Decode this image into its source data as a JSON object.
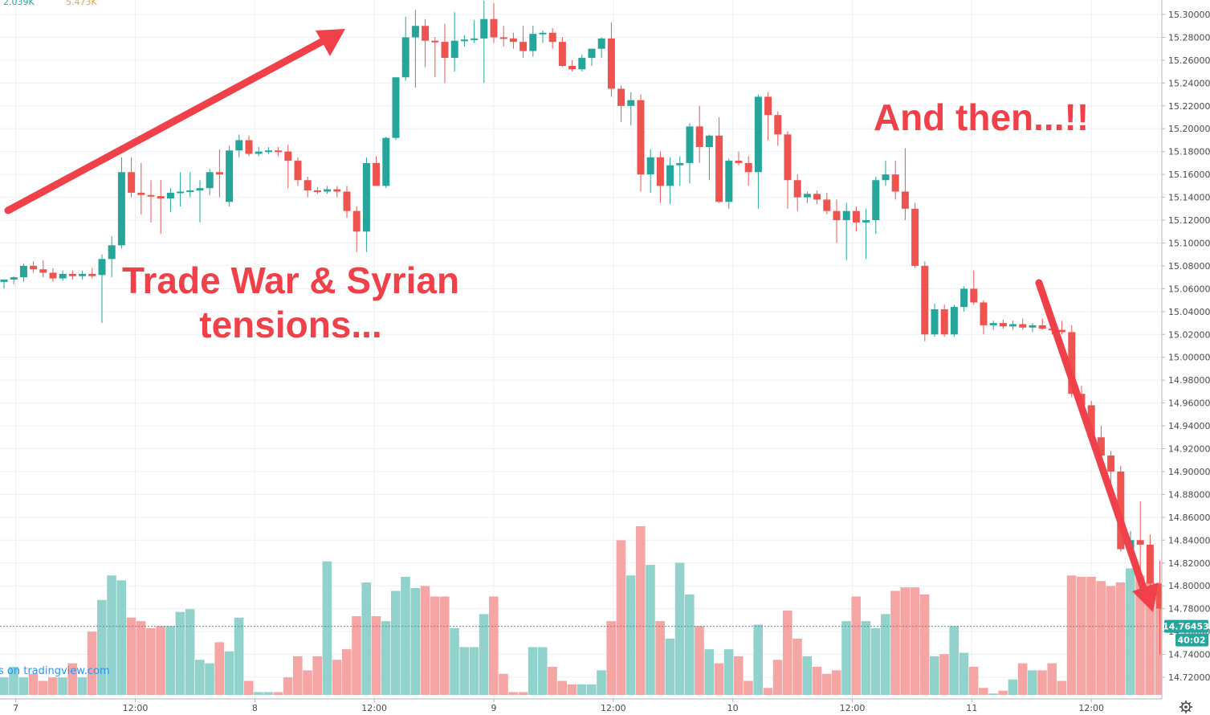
{
  "header": {
    "volume_up": "2.039K",
    "volume_down": "5.473K"
  },
  "annotations": {
    "left_line1": "Trade War & Syrian",
    "left_line2": "tensions...",
    "right": "And then...!!"
  },
  "credit": "s on tradingview.com",
  "price_badge": "14.76453",
  "countdown_badge": "40:02",
  "settings_icon": "gear-icon",
  "colors": {
    "up": "#26a69a",
    "down": "#ef5350",
    "up_volume": "#92d2cc",
    "down_volume": "#f5a6a4",
    "annotation": "#f0414b",
    "grid": "#eceff2"
  },
  "chart_data": {
    "type": "candlestick",
    "y_axis_side": "right",
    "ylim": [
      14.71,
      15.315
    ],
    "y_ticks": [
      "15.30000",
      "15.28000",
      "15.26000",
      "15.24000",
      "15.22000",
      "15.20000",
      "15.18000",
      "15.16000",
      "15.14000",
      "15.12000",
      "15.10000",
      "15.08000",
      "15.06000",
      "15.04000",
      "15.02000",
      "15.00000",
      "14.98000",
      "14.96000",
      "14.94000",
      "14.92000",
      "14.90000",
      "14.88000",
      "14.86000",
      "14.84000",
      "14.82000",
      "14.80000",
      "14.78000",
      "14.76000",
      "14.74000",
      "14.72000"
    ],
    "x_ticks": [
      {
        "label": "7",
        "i": 1.2
      },
      {
        "label": "12:00",
        "i": 13.4
      },
      {
        "label": "8",
        "i": 25.6
      },
      {
        "label": "12:00",
        "i": 37.8
      },
      {
        "label": "9",
        "i": 50.0
      },
      {
        "label": "12:00",
        "i": 62.2
      },
      {
        "label": "10",
        "i": 74.4
      },
      {
        "label": "12:00",
        "i": 86.6
      },
      {
        "label": "11",
        "i": 98.8
      },
      {
        "label": "12:00",
        "i": 111.0
      }
    ],
    "last_price": 14.76453,
    "grid": true,
    "candles": [
      {
        "o": 15.066,
        "h": 15.068,
        "l": 15.06,
        "c": 15.068,
        "v": 0.25
      },
      {
        "o": 15.068,
        "h": 15.071,
        "l": 15.064,
        "c": 15.07,
        "v": 0.4
      },
      {
        "o": 15.07,
        "h": 15.082,
        "l": 15.066,
        "c": 15.08,
        "v": 0.25
      },
      {
        "o": 15.08,
        "h": 15.084,
        "l": 15.074,
        "c": 15.077,
        "v": 0.3
      },
      {
        "o": 15.077,
        "h": 15.085,
        "l": 15.07,
        "c": 15.074,
        "v": 0.2
      },
      {
        "o": 15.074,
        "h": 15.078,
        "l": 15.066,
        "c": 15.069,
        "v": 0.25
      },
      {
        "o": 15.069,
        "h": 15.076,
        "l": 15.067,
        "c": 15.073,
        "v": 0.25
      },
      {
        "o": 15.073,
        "h": 15.076,
        "l": 15.068,
        "c": 15.071,
        "v": 0.45
      },
      {
        "o": 15.071,
        "h": 15.076,
        "l": 15.068,
        "c": 15.073,
        "v": 0.25
      },
      {
        "o": 15.073,
        "h": 15.078,
        "l": 15.069,
        "c": 15.071,
        "v": 0.9
      },
      {
        "o": 15.072,
        "h": 15.09,
        "l": 15.03,
        "c": 15.086,
        "v": 1.35
      },
      {
        "o": 15.086,
        "h": 15.106,
        "l": 15.07,
        "c": 15.098,
        "v": 1.7
      },
      {
        "o": 15.098,
        "h": 15.175,
        "l": 15.095,
        "c": 15.162,
        "v": 1.63
      },
      {
        "o": 15.162,
        "h": 15.175,
        "l": 15.14,
        "c": 15.144,
        "v": 1.1
      },
      {
        "o": 15.144,
        "h": 15.17,
        "l": 15.125,
        "c": 15.142,
        "v": 1.05
      },
      {
        "o": 15.142,
        "h": 15.155,
        "l": 15.118,
        "c": 15.141,
        "v": 0.95
      },
      {
        "o": 15.141,
        "h": 15.155,
        "l": 15.108,
        "c": 15.139,
        "v": 0.98
      },
      {
        "o": 15.139,
        "h": 15.148,
        "l": 15.127,
        "c": 15.144,
        "v": 0.98
      },
      {
        "o": 15.144,
        "h": 15.162,
        "l": 15.132,
        "c": 15.145,
        "v": 1.18
      },
      {
        "o": 15.145,
        "h": 15.162,
        "l": 15.14,
        "c": 15.146,
        "v": 1.22
      },
      {
        "o": 15.146,
        "h": 15.155,
        "l": 15.118,
        "c": 15.148,
        "v": 0.5
      },
      {
        "o": 15.148,
        "h": 15.165,
        "l": 15.142,
        "c": 15.162,
        "v": 0.45
      },
      {
        "o": 15.162,
        "h": 15.182,
        "l": 15.14,
        "c": 15.16,
        "v": 0.75
      },
      {
        "o": 15.136,
        "h": 15.185,
        "l": 15.132,
        "c": 15.181,
        "v": 0.62
      },
      {
        "o": 15.181,
        "h": 15.195,
        "l": 15.175,
        "c": 15.19,
        "v": 1.1
      },
      {
        "o": 15.19,
        "h": 15.194,
        "l": 15.176,
        "c": 15.178,
        "v": 0.2
      },
      {
        "o": 15.178,
        "h": 15.184,
        "l": 15.176,
        "c": 15.18,
        "v": 0.04
      },
      {
        "o": 15.18,
        "h": 15.184,
        "l": 15.178,
        "c": 15.181,
        "v": 0.04
      },
      {
        "o": 15.181,
        "h": 15.184,
        "l": 15.176,
        "c": 15.18,
        "v": 0.04
      },
      {
        "o": 15.18,
        "h": 15.186,
        "l": 15.148,
        "c": 15.172,
        "v": 0.25
      },
      {
        "o": 15.172,
        "h": 15.175,
        "l": 15.15,
        "c": 15.155,
        "v": 0.55
      },
      {
        "o": 15.155,
        "h": 15.158,
        "l": 15.14,
        "c": 15.146,
        "v": 0.35
      },
      {
        "o": 15.146,
        "h": 15.149,
        "l": 15.143,
        "c": 15.145,
        "v": 0.55
      },
      {
        "o": 15.145,
        "h": 15.15,
        "l": 15.143,
        "c": 15.147,
        "v": 1.9
      },
      {
        "o": 15.147,
        "h": 15.15,
        "l": 15.14,
        "c": 15.145,
        "v": 0.5
      },
      {
        "o": 15.145,
        "h": 15.15,
        "l": 15.122,
        "c": 15.128,
        "v": 0.65
      },
      {
        "o": 15.128,
        "h": 15.132,
        "l": 15.092,
        "c": 15.11,
        "v": 1.12
      },
      {
        "o": 15.11,
        "h": 15.175,
        "l": 15.092,
        "c": 15.17,
        "v": 1.6
      },
      {
        "o": 15.17,
        "h": 15.176,
        "l": 15.15,
        "c": 15.15,
        "v": 1.12
      },
      {
        "o": 15.15,
        "h": 15.193,
        "l": 15.148,
        "c": 15.192,
        "v": 1.05
      },
      {
        "o": 15.192,
        "h": 15.245,
        "l": 15.19,
        "c": 15.245,
        "v": 1.48
      },
      {
        "o": 15.245,
        "h": 15.298,
        "l": 15.242,
        "c": 15.28,
        "v": 1.68
      },
      {
        "o": 15.28,
        "h": 15.304,
        "l": 15.236,
        "c": 15.29,
        "v": 1.52
      },
      {
        "o": 15.29,
        "h": 15.296,
        "l": 15.254,
        "c": 15.277,
        "v": 1.55
      },
      {
        "o": 15.277,
        "h": 15.28,
        "l": 15.245,
        "c": 15.276,
        "v": 1.4
      },
      {
        "o": 15.276,
        "h": 15.292,
        "l": 15.24,
        "c": 15.262,
        "v": 1.4
      },
      {
        "o": 15.262,
        "h": 15.302,
        "l": 15.25,
        "c": 15.277,
        "v": 0.95
      },
      {
        "o": 15.277,
        "h": 15.282,
        "l": 15.272,
        "c": 15.278,
        "v": 0.68
      },
      {
        "o": 15.278,
        "h": 15.295,
        "l": 15.275,
        "c": 15.279,
        "v": 0.68
      },
      {
        "o": 15.279,
        "h": 15.312,
        "l": 15.24,
        "c": 15.296,
        "v": 1.15
      },
      {
        "o": 15.296,
        "h": 15.31,
        "l": 15.275,
        "c": 15.28,
        "v": 1.4
      },
      {
        "o": 15.28,
        "h": 15.29,
        "l": 15.272,
        "c": 15.279,
        "v": 0.3
      },
      {
        "o": 15.279,
        "h": 15.284,
        "l": 15.27,
        "c": 15.276,
        "v": 0.04
      },
      {
        "o": 15.276,
        "h": 15.29,
        "l": 15.262,
        "c": 15.268,
        "v": 0.04
      },
      {
        "o": 15.268,
        "h": 15.29,
        "l": 15.263,
        "c": 15.283,
        "v": 0.68
      },
      {
        "o": 15.283,
        "h": 15.286,
        "l": 15.275,
        "c": 15.284,
        "v": 0.68
      },
      {
        "o": 15.284,
        "h": 15.288,
        "l": 15.27,
        "c": 15.276,
        "v": 0.4
      },
      {
        "o": 15.276,
        "h": 15.28,
        "l": 15.254,
        "c": 15.255,
        "v": 0.2
      },
      {
        "o": 15.255,
        "h": 15.26,
        "l": 15.25,
        "c": 15.252,
        "v": 0.15
      },
      {
        "o": 15.252,
        "h": 15.265,
        "l": 15.25,
        "c": 15.262,
        "v": 0.15
      },
      {
        "o": 15.262,
        "h": 15.27,
        "l": 15.255,
        "c": 15.27,
        "v": 0.15
      },
      {
        "o": 15.27,
        "h": 15.28,
        "l": 15.262,
        "c": 15.279,
        "v": 0.35
      },
      {
        "o": 15.279,
        "h": 15.293,
        "l": 15.228,
        "c": 15.235,
        "v": 1.05
      },
      {
        "o": 15.235,
        "h": 15.238,
        "l": 15.206,
        "c": 15.22,
        "v": 2.2
      },
      {
        "o": 15.22,
        "h": 15.232,
        "l": 15.203,
        "c": 15.225,
        "v": 1.7
      },
      {
        "o": 15.225,
        "h": 15.23,
        "l": 15.145,
        "c": 15.16,
        "v": 2.4
      },
      {
        "o": 15.16,
        "h": 15.182,
        "l": 15.144,
        "c": 15.175,
        "v": 1.85
      },
      {
        "o": 15.175,
        "h": 15.18,
        "l": 15.135,
        "c": 15.15,
        "v": 1.05
      },
      {
        "o": 15.15,
        "h": 15.175,
        "l": 15.134,
        "c": 15.168,
        "v": 0.8
      },
      {
        "o": 15.168,
        "h": 15.176,
        "l": 15.15,
        "c": 15.17,
        "v": 1.88
      },
      {
        "o": 15.17,
        "h": 15.205,
        "l": 15.152,
        "c": 15.202,
        "v": 1.43
      },
      {
        "o": 15.202,
        "h": 15.22,
        "l": 15.17,
        "c": 15.184,
        "v": 0.98
      },
      {
        "o": 15.184,
        "h": 15.195,
        "l": 15.155,
        "c": 15.194,
        "v": 0.65
      },
      {
        "o": 15.194,
        "h": 15.21,
        "l": 15.135,
        "c": 15.136,
        "v": 0.45
      },
      {
        "o": 15.136,
        "h": 15.174,
        "l": 15.13,
        "c": 15.172,
        "v": 0.65
      },
      {
        "o": 15.172,
        "h": 15.18,
        "l": 15.168,
        "c": 15.17,
        "v": 0.55
      },
      {
        "o": 15.17,
        "h": 15.176,
        "l": 15.15,
        "c": 15.162,
        "v": 0.2
      },
      {
        "o": 15.162,
        "h": 15.23,
        "l": 15.13,
        "c": 15.228,
        "v": 1.0
      },
      {
        "o": 15.228,
        "h": 15.232,
        "l": 15.19,
        "c": 15.212,
        "v": 0.1
      },
      {
        "o": 15.212,
        "h": 15.215,
        "l": 15.185,
        "c": 15.195,
        "v": 0.5
      },
      {
        "o": 15.195,
        "h": 15.198,
        "l": 15.13,
        "c": 15.155,
        "v": 1.2
      },
      {
        "o": 15.155,
        "h": 15.16,
        "l": 15.128,
        "c": 15.14,
        "v": 0.8
      },
      {
        "o": 15.14,
        "h": 15.145,
        "l": 15.135,
        "c": 15.143,
        "v": 0.55
      },
      {
        "o": 15.143,
        "h": 15.146,
        "l": 15.134,
        "c": 15.138,
        "v": 0.4
      },
      {
        "o": 15.138,
        "h": 15.144,
        "l": 15.125,
        "c": 15.128,
        "v": 0.3
      },
      {
        "o": 15.128,
        "h": 15.138,
        "l": 15.1,
        "c": 15.12,
        "v": 0.35
      },
      {
        "o": 15.12,
        "h": 15.135,
        "l": 15.085,
        "c": 15.128,
        "v": 1.05
      },
      {
        "o": 15.128,
        "h": 15.132,
        "l": 15.11,
        "c": 15.118,
        "v": 1.4
      },
      {
        "o": 15.118,
        "h": 15.13,
        "l": 15.086,
        "c": 15.12,
        "v": 1.05
      },
      {
        "o": 15.12,
        "h": 15.158,
        "l": 15.108,
        "c": 15.155,
        "v": 0.95
      },
      {
        "o": 15.155,
        "h": 15.172,
        "l": 15.15,
        "c": 15.16,
        "v": 1.15
      },
      {
        "o": 15.16,
        "h": 15.172,
        "l": 15.138,
        "c": 15.145,
        "v": 1.48
      },
      {
        "o": 15.145,
        "h": 15.183,
        "l": 15.12,
        "c": 15.13,
        "v": 1.53
      },
      {
        "o": 15.13,
        "h": 15.135,
        "l": 15.078,
        "c": 15.08,
        "v": 1.53
      },
      {
        "o": 15.08,
        "h": 15.084,
        "l": 15.014,
        "c": 15.02,
        "v": 1.43
      },
      {
        "o": 15.02,
        "h": 15.047,
        "l": 15.018,
        "c": 15.042,
        "v": 0.55
      },
      {
        "o": 15.042,
        "h": 15.046,
        "l": 15.018,
        "c": 15.02,
        "v": 0.58
      },
      {
        "o": 15.02,
        "h": 15.046,
        "l": 15.018,
        "c": 15.044,
        "v": 0.98
      },
      {
        "o": 15.044,
        "h": 15.062,
        "l": 15.04,
        "c": 15.06,
        "v": 0.6
      },
      {
        "o": 15.06,
        "h": 15.076,
        "l": 15.046,
        "c": 15.048,
        "v": 0.4
      },
      {
        "o": 15.048,
        "h": 15.05,
        "l": 15.02,
        "c": 15.028,
        "v": 0.1
      },
      {
        "o": 15.028,
        "h": 15.032,
        "l": 15.024,
        "c": 15.03,
        "v": 0.02
      },
      {
        "o": 15.03,
        "h": 15.033,
        "l": 15.025,
        "c": 15.027,
        "v": 0.06
      },
      {
        "o": 15.027,
        "h": 15.032,
        "l": 15.024,
        "c": 15.029,
        "v": 0.22
      },
      {
        "o": 15.029,
        "h": 15.034,
        "l": 15.024,
        "c": 15.026,
        "v": 0.45
      },
      {
        "o": 15.026,
        "h": 15.03,
        "l": 15.022,
        "c": 15.028,
        "v": 0.35
      },
      {
        "o": 15.028,
        "h": 15.034,
        "l": 15.024,
        "c": 15.025,
        "v": 0.35
      },
      {
        "o": 15.025,
        "h": 15.03,
        "l": 15.02,
        "c": 15.024,
        "v": 0.45
      },
      {
        "o": 15.024,
        "h": 15.032,
        "l": 15.02,
        "c": 15.022,
        "v": 0.2
      },
      {
        "o": 15.022,
        "h": 15.028,
        "l": 14.965,
        "c": 14.968,
        "v": 1.7
      },
      {
        "o": 14.968,
        "h": 14.975,
        "l": 14.95,
        "c": 14.958,
        "v": 1.68
      },
      {
        "o": 14.958,
        "h": 14.962,
        "l": 14.926,
        "c": 14.93,
        "v": 1.68
      },
      {
        "o": 14.93,
        "h": 14.94,
        "l": 14.91,
        "c": 14.914,
        "v": 1.62
      },
      {
        "o": 14.914,
        "h": 14.918,
        "l": 14.89,
        "c": 14.9,
        "v": 1.55
      },
      {
        "o": 14.9,
        "h": 14.905,
        "l": 14.83,
        "c": 14.832,
        "v": 1.6
      },
      {
        "o": 14.832,
        "h": 14.848,
        "l": 14.83,
        "c": 14.84,
        "v": 1.8
      },
      {
        "o": 14.84,
        "h": 14.874,
        "l": 14.8,
        "c": 14.836,
        "v": 1.7
      },
      {
        "o": 14.836,
        "h": 14.845,
        "l": 14.797,
        "c": 14.802,
        "v": 1.6
      },
      {
        "o": 14.802,
        "h": 14.822,
        "l": 14.74,
        "c": 14.78,
        "v": 1.45
      },
      {
        "o": 14.78,
        "h": 14.786,
        "l": 14.75,
        "c": 14.765,
        "v": 0.98
      },
      {
        "o": 14.765,
        "h": 14.775,
        "l": 14.737,
        "c": 14.75,
        "v": 0.65
      },
      {
        "o": 14.75,
        "h": 14.768,
        "l": 14.745,
        "c": 14.764,
        "v": 0.45
      }
    ]
  }
}
